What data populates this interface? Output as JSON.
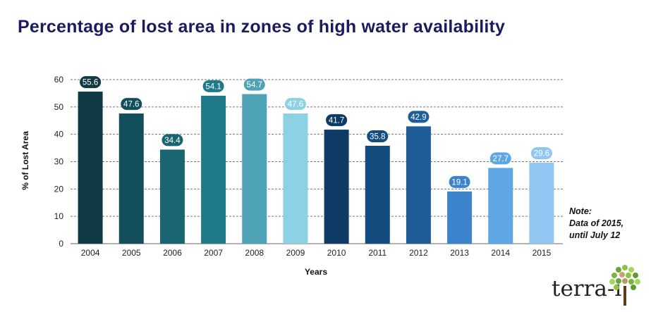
{
  "chart_data": {
    "type": "bar",
    "title": "Percentage of lost area in zones of high water availability",
    "xlabel": "Years",
    "ylabel": "% of Lost Area",
    "categories": [
      "2004",
      "2005",
      "2006",
      "2007",
      "2008",
      "2009",
      "2010",
      "2011",
      "2012",
      "2013",
      "2014",
      "2015"
    ],
    "values": [
      55.6,
      47.6,
      34.4,
      54.1,
      54.7,
      47.6,
      41.7,
      35.8,
      42.9,
      19.1,
      27.7,
      29.6
    ],
    "value_labels": [
      "55.6",
      "47.6",
      "34.4",
      "54.1",
      "54.7",
      "47.6",
      "41.7",
      "35.8",
      "42.9",
      "19.1",
      "27.7",
      "29.6"
    ],
    "ylim": [
      0,
      60
    ],
    "yticks": [
      0,
      10,
      20,
      30,
      40,
      50,
      60
    ],
    "ytick_labels": [
      "0",
      "10",
      "20",
      "30",
      "40",
      "50",
      "60"
    ],
    "grid": "dashed-horizontal",
    "legend": "none",
    "colors": [
      "#0f3a43",
      "#134e5b",
      "#1a6572",
      "#217a89",
      "#4fa3b7",
      "#8dd1e4",
      "#0d3b66",
      "#144c80",
      "#1f5d99",
      "#3b84cc",
      "#5fa6e4",
      "#92c6f2"
    ]
  },
  "note": {
    "line1": "Note:",
    "line2": "Data of 2015,",
    "line3": "until July 12"
  },
  "logo": {
    "text": "terra-i",
    "icon": "tree-logo-icon"
  }
}
